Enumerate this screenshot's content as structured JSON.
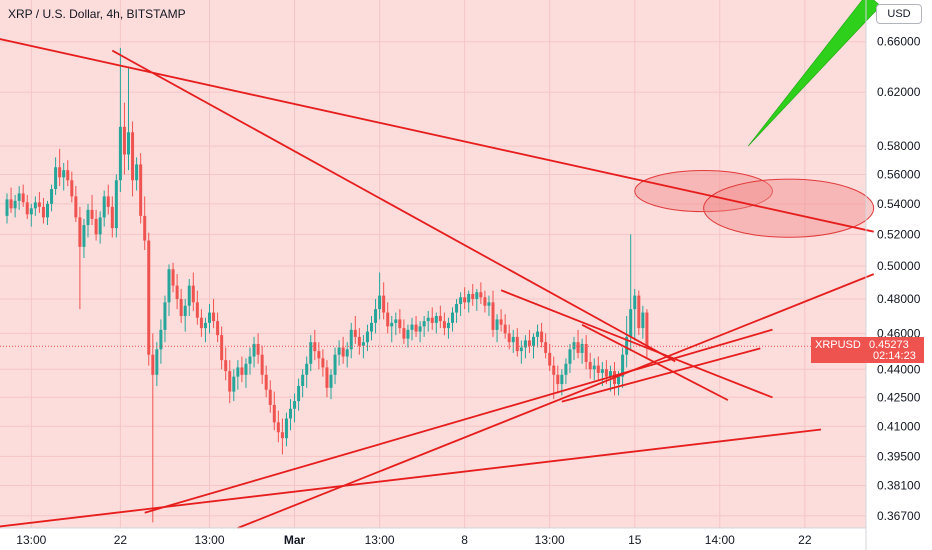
{
  "chart_data": {
    "type": "candlestick",
    "title": "XRP / U.S. Dollar, 4h, BITSTAMP",
    "currency_label": "USD",
    "last_price_tag": {
      "symbol": "XRPUSD",
      "value": "0.45273",
      "countdown": "02:14:23"
    },
    "y_axis": {
      "scale": "log",
      "range": [
        0.3615,
        0.695
      ],
      "ticks": [
        "0.66000",
        "0.62000",
        "0.58000",
        "0.56000",
        "0.54000",
        "0.52000",
        "0.50000",
        "0.48000",
        "0.46000",
        "0.44000",
        "0.42500",
        "0.41000",
        "0.39500",
        "0.38100",
        "0.36700"
      ]
    },
    "x_axis": {
      "ticks": [
        {
          "label": "13:00",
          "bar": 6,
          "bold": false
        },
        {
          "label": "22",
          "bar": 28,
          "bold": false
        },
        {
          "label": "13:00",
          "bar": 50,
          "bold": false
        },
        {
          "label": "Mar",
          "bar": 71,
          "bold": true
        },
        {
          "label": "13:00",
          "bar": 92,
          "bold": false
        },
        {
          "label": "8",
          "bar": 113,
          "bold": false
        },
        {
          "label": "13:00",
          "bar": 134,
          "bold": false
        },
        {
          "label": "15",
          "bar": 155,
          "bold": false
        },
        {
          "label": "14:00",
          "bar": 176,
          "bold": false
        },
        {
          "label": "22",
          "bar": 197,
          "bold": false
        }
      ]
    },
    "colors": {
      "background": "#fddcdc",
      "grid": "#f4c6c6",
      "up": "#26a69a",
      "down": "#ef5350",
      "drawing_line": "#e61e1e",
      "ellipse_fill": "#f08a8a",
      "ellipse_stroke": "#e03a3a",
      "arrow": "#2fd01b"
    },
    "bar_spacing_px": 4.05,
    "candles": [
      [
        0.532,
        0.547,
        0.527,
        0.543
      ],
      [
        0.543,
        0.551,
        0.534,
        0.537
      ],
      [
        0.537,
        0.546,
        0.531,
        0.542
      ],
      [
        0.542,
        0.552,
        0.536,
        0.547
      ],
      [
        0.547,
        0.553,
        0.538,
        0.541
      ],
      [
        0.541,
        0.546,
        0.53,
        0.533
      ],
      [
        0.533,
        0.54,
        0.525,
        0.537
      ],
      [
        0.537,
        0.545,
        0.532,
        0.541
      ],
      [
        0.541,
        0.548,
        0.534,
        0.538
      ],
      [
        0.538,
        0.544,
        0.527,
        0.531
      ],
      [
        0.531,
        0.542,
        0.526,
        0.54
      ],
      [
        0.54,
        0.553,
        0.535,
        0.55
      ],
      [
        0.55,
        0.572,
        0.546,
        0.565
      ],
      [
        0.565,
        0.578,
        0.552,
        0.558
      ],
      [
        0.558,
        0.568,
        0.549,
        0.563
      ],
      [
        0.563,
        0.57,
        0.552,
        0.556
      ],
      [
        0.556,
        0.562,
        0.541,
        0.545
      ],
      [
        0.545,
        0.552,
        0.528,
        0.531
      ],
      [
        0.531,
        0.538,
        0.474,
        0.512
      ],
      [
        0.512,
        0.53,
        0.505,
        0.526
      ],
      [
        0.526,
        0.54,
        0.518,
        0.536
      ],
      [
        0.536,
        0.546,
        0.526,
        0.53
      ],
      [
        0.53,
        0.536,
        0.516,
        0.52
      ],
      [
        0.52,
        0.535,
        0.514,
        0.531
      ],
      [
        0.531,
        0.549,
        0.525,
        0.545
      ],
      [
        0.545,
        0.553,
        0.533,
        0.538
      ],
      [
        0.538,
        0.545,
        0.518,
        0.524
      ],
      [
        0.524,
        0.56,
        0.518,
        0.556
      ],
      [
        0.556,
        0.655,
        0.548,
        0.594
      ],
      [
        0.594,
        0.612,
        0.56,
        0.574
      ],
      [
        0.574,
        0.64,
        0.563,
        0.59
      ],
      [
        0.59,
        0.598,
        0.545,
        0.556
      ],
      [
        0.556,
        0.572,
        0.549,
        0.567
      ],
      [
        0.567,
        0.575,
        0.527,
        0.532
      ],
      [
        0.532,
        0.545,
        0.51,
        0.516
      ],
      [
        0.516,
        0.521,
        0.442,
        0.448
      ],
      [
        0.448,
        0.46,
        0.364,
        0.437
      ],
      [
        0.437,
        0.455,
        0.431,
        0.451
      ],
      [
        0.451,
        0.468,
        0.443,
        0.462
      ],
      [
        0.462,
        0.482,
        0.455,
        0.478
      ],
      [
        0.478,
        0.501,
        0.47,
        0.498
      ],
      [
        0.498,
        0.502,
        0.484,
        0.488
      ],
      [
        0.488,
        0.495,
        0.474,
        0.48
      ],
      [
        0.48,
        0.486,
        0.466,
        0.47
      ],
      [
        0.47,
        0.48,
        0.461,
        0.476
      ],
      [
        0.476,
        0.492,
        0.47,
        0.488
      ],
      [
        0.488,
        0.496,
        0.473,
        0.478
      ],
      [
        0.478,
        0.485,
        0.465,
        0.469
      ],
      [
        0.469,
        0.474,
        0.458,
        0.463
      ],
      [
        0.463,
        0.469,
        0.455,
        0.466
      ],
      [
        0.466,
        0.477,
        0.46,
        0.472
      ],
      [
        0.472,
        0.48,
        0.463,
        0.467
      ],
      [
        0.467,
        0.472,
        0.455,
        0.459
      ],
      [
        0.459,
        0.464,
        0.44,
        0.445
      ],
      [
        0.445,
        0.452,
        0.434,
        0.439
      ],
      [
        0.439,
        0.445,
        0.422,
        0.428
      ],
      [
        0.428,
        0.44,
        0.423,
        0.436
      ],
      [
        0.436,
        0.445,
        0.429,
        0.441
      ],
      [
        0.441,
        0.447,
        0.433,
        0.437
      ],
      [
        0.437,
        0.446,
        0.43,
        0.443
      ],
      [
        0.443,
        0.452,
        0.437,
        0.447
      ],
      [
        0.447,
        0.458,
        0.441,
        0.454
      ],
      [
        0.454,
        0.46,
        0.443,
        0.448
      ],
      [
        0.448,
        0.453,
        0.432,
        0.437
      ],
      [
        0.437,
        0.442,
        0.425,
        0.429
      ],
      [
        0.429,
        0.434,
        0.417,
        0.421
      ],
      [
        0.421,
        0.428,
        0.408,
        0.412
      ],
      [
        0.412,
        0.418,
        0.402,
        0.407
      ],
      [
        0.407,
        0.414,
        0.396,
        0.404
      ],
      [
        0.404,
        0.417,
        0.4,
        0.414
      ],
      [
        0.414,
        0.424,
        0.408,
        0.419
      ],
      [
        0.419,
        0.427,
        0.412,
        0.423
      ],
      [
        0.423,
        0.435,
        0.418,
        0.431
      ],
      [
        0.431,
        0.44,
        0.425,
        0.437
      ],
      [
        0.437,
        0.447,
        0.43,
        0.443
      ],
      [
        0.443,
        0.459,
        0.439,
        0.455
      ],
      [
        0.455,
        0.462,
        0.445,
        0.45
      ],
      [
        0.45,
        0.455,
        0.44,
        0.446
      ],
      [
        0.446,
        0.451,
        0.436,
        0.441
      ],
      [
        0.441,
        0.445,
        0.425,
        0.43
      ],
      [
        0.43,
        0.44,
        0.424,
        0.437
      ],
      [
        0.437,
        0.452,
        0.432,
        0.448
      ],
      [
        0.448,
        0.456,
        0.442,
        0.452
      ],
      [
        0.452,
        0.458,
        0.443,
        0.447
      ],
      [
        0.447,
        0.455,
        0.441,
        0.451
      ],
      [
        0.451,
        0.466,
        0.446,
        0.462
      ],
      [
        0.462,
        0.47,
        0.454,
        0.458
      ],
      [
        0.458,
        0.463,
        0.448,
        0.453
      ],
      [
        0.453,
        0.459,
        0.446,
        0.455
      ],
      [
        0.455,
        0.465,
        0.45,
        0.461
      ],
      [
        0.461,
        0.47,
        0.456,
        0.466
      ],
      [
        0.466,
        0.48,
        0.46,
        0.474
      ],
      [
        0.474,
        0.496,
        0.468,
        0.482
      ],
      [
        0.482,
        0.49,
        0.468,
        0.472
      ],
      [
        0.472,
        0.478,
        0.46,
        0.464
      ],
      [
        0.464,
        0.47,
        0.455,
        0.466
      ],
      [
        0.466,
        0.472,
        0.459,
        0.468
      ],
      [
        0.468,
        0.474,
        0.46,
        0.463
      ],
      [
        0.463,
        0.468,
        0.454,
        0.457
      ],
      [
        0.457,
        0.465,
        0.452,
        0.462
      ],
      [
        0.462,
        0.469,
        0.456,
        0.465
      ],
      [
        0.465,
        0.47,
        0.458,
        0.461
      ],
      [
        0.461,
        0.467,
        0.455,
        0.464
      ],
      [
        0.464,
        0.47,
        0.458,
        0.467
      ],
      [
        0.467,
        0.473,
        0.461,
        0.469
      ],
      [
        0.469,
        0.475,
        0.462,
        0.466
      ],
      [
        0.466,
        0.472,
        0.46,
        0.47
      ],
      [
        0.47,
        0.476,
        0.463,
        0.467
      ],
      [
        0.467,
        0.472,
        0.459,
        0.463
      ],
      [
        0.463,
        0.469,
        0.457,
        0.466
      ],
      [
        0.466,
        0.475,
        0.461,
        0.472
      ],
      [
        0.472,
        0.48,
        0.466,
        0.477
      ],
      [
        0.477,
        0.484,
        0.47,
        0.481
      ],
      [
        0.481,
        0.487,
        0.474,
        0.478
      ],
      [
        0.478,
        0.485,
        0.472,
        0.483
      ],
      [
        0.483,
        0.489,
        0.476,
        0.48
      ],
      [
        0.48,
        0.486,
        0.473,
        0.484
      ],
      [
        0.484,
        0.49,
        0.477,
        0.481
      ],
      [
        0.481,
        0.485,
        0.472,
        0.476
      ],
      [
        0.476,
        0.482,
        0.47,
        0.478
      ],
      [
        0.478,
        0.485,
        0.458,
        0.462
      ],
      [
        0.462,
        0.471,
        0.455,
        0.468
      ],
      [
        0.468,
        0.474,
        0.461,
        0.465
      ],
      [
        0.465,
        0.471,
        0.457,
        0.46
      ],
      [
        0.46,
        0.465,
        0.451,
        0.455
      ],
      [
        0.455,
        0.462,
        0.449,
        0.458
      ],
      [
        0.458,
        0.463,
        0.447,
        0.45
      ],
      [
        0.45,
        0.456,
        0.443,
        0.452
      ],
      [
        0.452,
        0.459,
        0.446,
        0.456
      ],
      [
        0.456,
        0.462,
        0.449,
        0.453
      ],
      [
        0.453,
        0.46,
        0.446,
        0.458
      ],
      [
        0.458,
        0.465,
        0.452,
        0.461
      ],
      [
        0.461,
        0.466,
        0.452,
        0.455
      ],
      [
        0.455,
        0.46,
        0.446,
        0.449
      ],
      [
        0.449,
        0.454,
        0.439,
        0.442
      ],
      [
        0.442,
        0.447,
        0.424,
        0.437
      ],
      [
        0.437,
        0.442,
        0.427,
        0.432
      ],
      [
        0.432,
        0.44,
        0.426,
        0.437
      ],
      [
        0.437,
        0.446,
        0.432,
        0.443
      ],
      [
        0.443,
        0.454,
        0.438,
        0.451
      ],
      [
        0.451,
        0.458,
        0.445,
        0.455
      ],
      [
        0.455,
        0.462,
        0.446,
        0.449
      ],
      [
        0.449,
        0.457,
        0.443,
        0.454
      ],
      [
        0.454,
        0.459,
        0.44,
        0.444
      ],
      [
        0.444,
        0.449,
        0.435,
        0.44
      ],
      [
        0.44,
        0.446,
        0.434,
        0.442
      ],
      [
        0.442,
        0.447,
        0.434,
        0.438
      ],
      [
        0.438,
        0.444,
        0.431,
        0.44
      ],
      [
        0.44,
        0.445,
        0.432,
        0.436
      ],
      [
        0.436,
        0.442,
        0.428,
        0.439
      ],
      [
        0.439,
        0.444,
        0.426,
        0.432
      ],
      [
        0.432,
        0.439,
        0.426,
        0.436
      ],
      [
        0.436,
        0.452,
        0.43,
        0.448
      ],
      [
        0.448,
        0.47,
        0.441,
        0.458
      ],
      [
        0.458,
        0.52,
        0.45,
        0.474
      ],
      [
        0.474,
        0.486,
        0.456,
        0.482
      ],
      [
        0.482,
        0.485,
        0.459,
        0.463
      ],
      [
        0.463,
        0.476,
        0.457,
        0.472
      ],
      [
        0.472,
        0.474,
        0.446,
        0.453
      ]
    ],
    "trend_lines": [
      {
        "name": "trend-line-upper-resistance",
        "points": [
          [
            -5,
            0.6646
          ],
          [
            214,
            0.5217
          ]
        ]
      },
      {
        "name": "trend-line-from-high",
        "points": [
          [
            26,
            0.6528
          ],
          [
            165,
            0.4443
          ]
        ]
      },
      {
        "name": "trend-line-red-segment-1",
        "points": [
          [
            122,
            0.4852
          ],
          [
            189,
            0.4249
          ]
        ]
      },
      {
        "name": "trend-line-red-segment-2",
        "points": [
          [
            142,
            0.4649
          ],
          [
            178,
            0.4235
          ]
        ]
      },
      {
        "name": "trend-line-support-1",
        "points": [
          [
            -5,
            0.3615
          ],
          [
            201,
            0.4084
          ]
        ]
      },
      {
        "name": "trend-line-support-2",
        "points": [
          [
            34,
            0.3684
          ],
          [
            189,
            0.4621
          ]
        ]
      },
      {
        "name": "trend-line-support-3",
        "points": [
          [
            57,
            0.3615
          ],
          [
            214,
            0.495
          ]
        ]
      },
      {
        "name": "trend-line-support-4",
        "points": [
          [
            137,
            0.4227
          ],
          [
            186,
            0.4515
          ]
        ]
      }
    ],
    "ellipses": [
      {
        "name": "highlight-ellipse-1",
        "center": [
          172,
          0.5486
        ],
        "rx_bars": 17,
        "ry_price": [
          0.5629,
          0.5349
        ]
      },
      {
        "name": "highlight-ellipse-2",
        "center": [
          193,
          0.5371
        ],
        "rx_bars": 21,
        "ry_price": [
          0.5575,
          0.5188
        ]
      }
    ],
    "arrow": {
      "name": "green-projection-arrow",
      "from": [
        183,
        0.58
      ],
      "to": [
        214,
        0.695
      ]
    }
  }
}
